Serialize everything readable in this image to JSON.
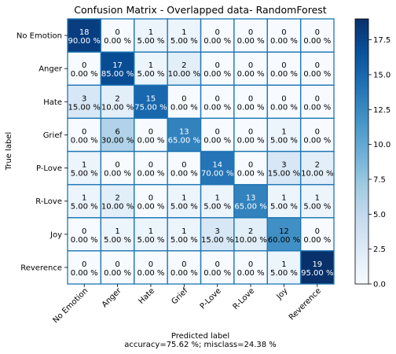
{
  "chart_data": {
    "type": "heatmap",
    "title": "Confusion Matrix - Overlapped data- RandomForest",
    "xlabel": "Predicted label",
    "ylabel": "True label",
    "footer": "accuracy=75.62 %; misclass=24.38 %",
    "x_categories": [
      "No Emotion",
      "Anger",
      "Hate",
      "Grief",
      "P-Love",
      "R-Love",
      "Joy",
      "Reverence"
    ],
    "y_categories": [
      "No Emotion",
      "Anger",
      "Hate",
      "Grief",
      "P-Love",
      "R-Love",
      "Joy",
      "Reverence"
    ],
    "values": [
      [
        18,
        0,
        1,
        1,
        0,
        0,
        0,
        0
      ],
      [
        0,
        17,
        1,
        2,
        0,
        0,
        0,
        0
      ],
      [
        3,
        2,
        15,
        0,
        0,
        0,
        0,
        0
      ],
      [
        0,
        6,
        0,
        13,
        0,
        0,
        1,
        0
      ],
      [
        1,
        0,
        0,
        0,
        14,
        0,
        3,
        2
      ],
      [
        1,
        2,
        0,
        1,
        1,
        13,
        1,
        1
      ],
      [
        0,
        1,
        1,
        1,
        3,
        2,
        12,
        0
      ],
      [
        0,
        0,
        0,
        0,
        0,
        0,
        1,
        19
      ]
    ],
    "percent_labels": [
      [
        "90.00 %",
        "0.00 %",
        "5.00 %",
        "5.00 %",
        "0.00 %",
        "0.00 %",
        "0.00 %",
        "0.00 %"
      ],
      [
        "0.00 %",
        "85.00 %",
        "5.00 %",
        "10.00 %",
        "0.00 %",
        "0.00 %",
        "0.00 %",
        "0.00 %"
      ],
      [
        "15.00 %",
        "10.00 %",
        "75.00 %",
        "0.00 %",
        "0.00 %",
        "0.00 %",
        "0.00 %",
        "0.00 %"
      ],
      [
        "0.00 %",
        "30.00 %",
        "0.00 %",
        "65.00 %",
        "0.00 %",
        "0.00 %",
        "5.00 %",
        "0.00 %"
      ],
      [
        "5.00 %",
        "0.00 %",
        "0.00 %",
        "0.00 %",
        "70.00 %",
        "0.00 %",
        "15.00 %",
        "10.00 %"
      ],
      [
        "5.00 %",
        "10.00 %",
        "0.00 %",
        "5.00 %",
        "5.00 %",
        "65.00 %",
        "5.00 %",
        "5.00 %"
      ],
      [
        "0.00 %",
        "5.00 %",
        "5.00 %",
        "5.00 %",
        "15.00 %",
        "10.00 %",
        "60.00 %",
        "0.00 %"
      ],
      [
        "0.00 %",
        "0.00 %",
        "0.00 %",
        "0.00 %",
        "0.00 %",
        "0.00 %",
        "5.00 %",
        "95.00 %"
      ]
    ],
    "colorbar": {
      "range": [
        0,
        19
      ],
      "ticks": [
        0,
        2.5,
        5,
        7.5,
        10,
        12.5,
        15,
        17.5
      ],
      "tick_labels": [
        "0.0",
        "2.5",
        "5.0",
        "7.5",
        "10.0",
        "12.5",
        "15.0",
        "17.5"
      ],
      "colormap": "Blues",
      "color_low": "#f7fbff",
      "color_high": "#08306b"
    },
    "cell_border_color": "#1f77b4",
    "text_color_dark": "#000000",
    "text_color_light": "#ffffff",
    "grid": true
  }
}
